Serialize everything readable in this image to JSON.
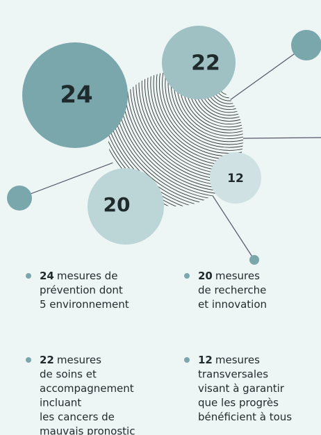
{
  "bubbles": [
    24,
    22,
    20,
    12
  ],
  "legend": [
    {
      "number": 24,
      "lines": [
        "mesures de",
        "prévention dont",
        "5 environnement"
      ]
    },
    {
      "number": 20,
      "lines": [
        "mesures",
        "de recherche",
        "et innovation"
      ]
    },
    {
      "number": 22,
      "lines": [
        "mesures",
        "de soins et",
        "accompagnement",
        "incluant",
        "les cancers de",
        "mauvais pronostic"
      ]
    },
    {
      "number": 12,
      "lines": [
        "mesures",
        "transversales",
        "visant à garantir",
        "que les progrès",
        "bénéficient à tous"
      ]
    }
  ]
}
